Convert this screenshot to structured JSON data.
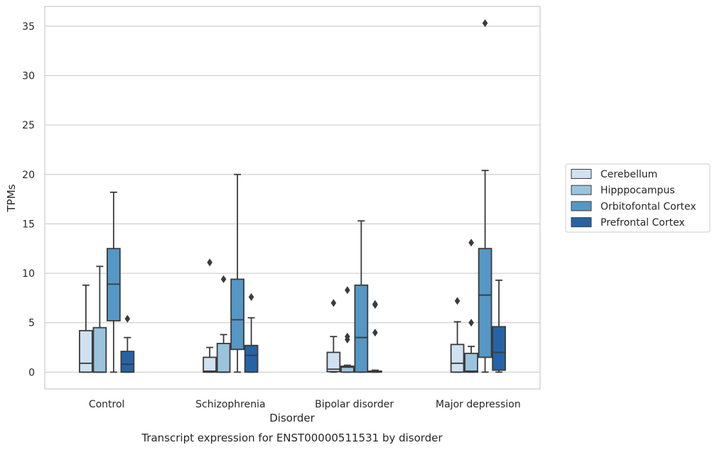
{
  "caption": "Transcript expression for ENST00000511531 by disorder",
  "chart_data": {
    "type": "box",
    "xlabel": "Disorder",
    "ylabel": "TPMs",
    "ylim": [
      -1.7,
      37
    ],
    "yticks": [
      0,
      5,
      10,
      15,
      20,
      25,
      30,
      35
    ],
    "categories": [
      "Control",
      "Schizophrenia",
      "Bipolar disorder",
      "Major depression"
    ],
    "grid": "horizontal",
    "legend_position": "right",
    "series": [
      {
        "name": "Cerebellum",
        "color": "#d0e1f2",
        "boxes": [
          {
            "whislo": 0,
            "q1": 0,
            "med": 0.9,
            "q3": 4.2,
            "whishi": 8.8,
            "fliers": []
          },
          {
            "whislo": 0,
            "q1": 0,
            "med": 0.1,
            "q3": 1.5,
            "whishi": 2.5,
            "fliers": [
              11.1
            ]
          },
          {
            "whislo": 0,
            "q1": 0.05,
            "med": 0.3,
            "q3": 2.0,
            "whishi": 3.6,
            "fliers": [
              7.0
            ]
          },
          {
            "whislo": 0,
            "q1": 0,
            "med": 0.9,
            "q3": 2.8,
            "whishi": 5.1,
            "fliers": [
              7.2
            ]
          }
        ]
      },
      {
        "name": "Hipppocampus",
        "color": "#9ac4de",
        "boxes": [
          {
            "whislo": 0,
            "q1": 0,
            "med": 0,
            "q3": 4.5,
            "whishi": 10.7,
            "fliers": []
          },
          {
            "whislo": 0,
            "q1": 0,
            "med": 0,
            "q3": 2.9,
            "whishi": 3.8,
            "fliers": [
              9.4
            ]
          },
          {
            "whislo": 0,
            "q1": 0,
            "med": 0.5,
            "q3": 0.6,
            "whishi": 0.7,
            "fliers": [
              3.3,
              3.6,
              8.3
            ]
          },
          {
            "whislo": 0,
            "q1": 0,
            "med": 0.1,
            "q3": 1.9,
            "whishi": 2.6,
            "fliers": [
              5.0,
              13.1
            ]
          }
        ]
      },
      {
        "name": "Orbitofontal Cortex",
        "color": "#5597c6",
        "boxes": [
          {
            "whislo": 0,
            "q1": 5.2,
            "med": 8.9,
            "q3": 12.5,
            "whishi": 18.2,
            "fliers": []
          },
          {
            "whislo": 0,
            "q1": 2.3,
            "med": 5.3,
            "q3": 9.4,
            "whishi": 20.0,
            "fliers": []
          },
          {
            "whislo": 0,
            "q1": 0,
            "med": 3.5,
            "q3": 8.8,
            "whishi": 15.3,
            "fliers": []
          },
          {
            "whislo": 0,
            "q1": 1.5,
            "med": 7.8,
            "q3": 12.5,
            "whishi": 20.4,
            "fliers": [
              35.3
            ]
          }
        ]
      },
      {
        "name": "Prefrontal Cortex",
        "color": "#2464a6",
        "boxes": [
          {
            "whislo": 0,
            "q1": 0,
            "med": 0.8,
            "q3": 2.1,
            "whishi": 3.5,
            "fliers": [
              5.4
            ]
          },
          {
            "whislo": 0,
            "q1": 0,
            "med": 1.7,
            "q3": 2.7,
            "whishi": 5.5,
            "fliers": [
              7.6
            ]
          },
          {
            "whislo": 0,
            "q1": 0,
            "med": 0.1,
            "q3": 0.1,
            "whishi": 0.2,
            "fliers": [
              4.0,
              6.8,
              6.9
            ]
          },
          {
            "whislo": 0,
            "q1": 0.2,
            "med": 2.0,
            "q3": 4.6,
            "whishi": 9.3,
            "fliers": []
          }
        ]
      }
    ]
  }
}
